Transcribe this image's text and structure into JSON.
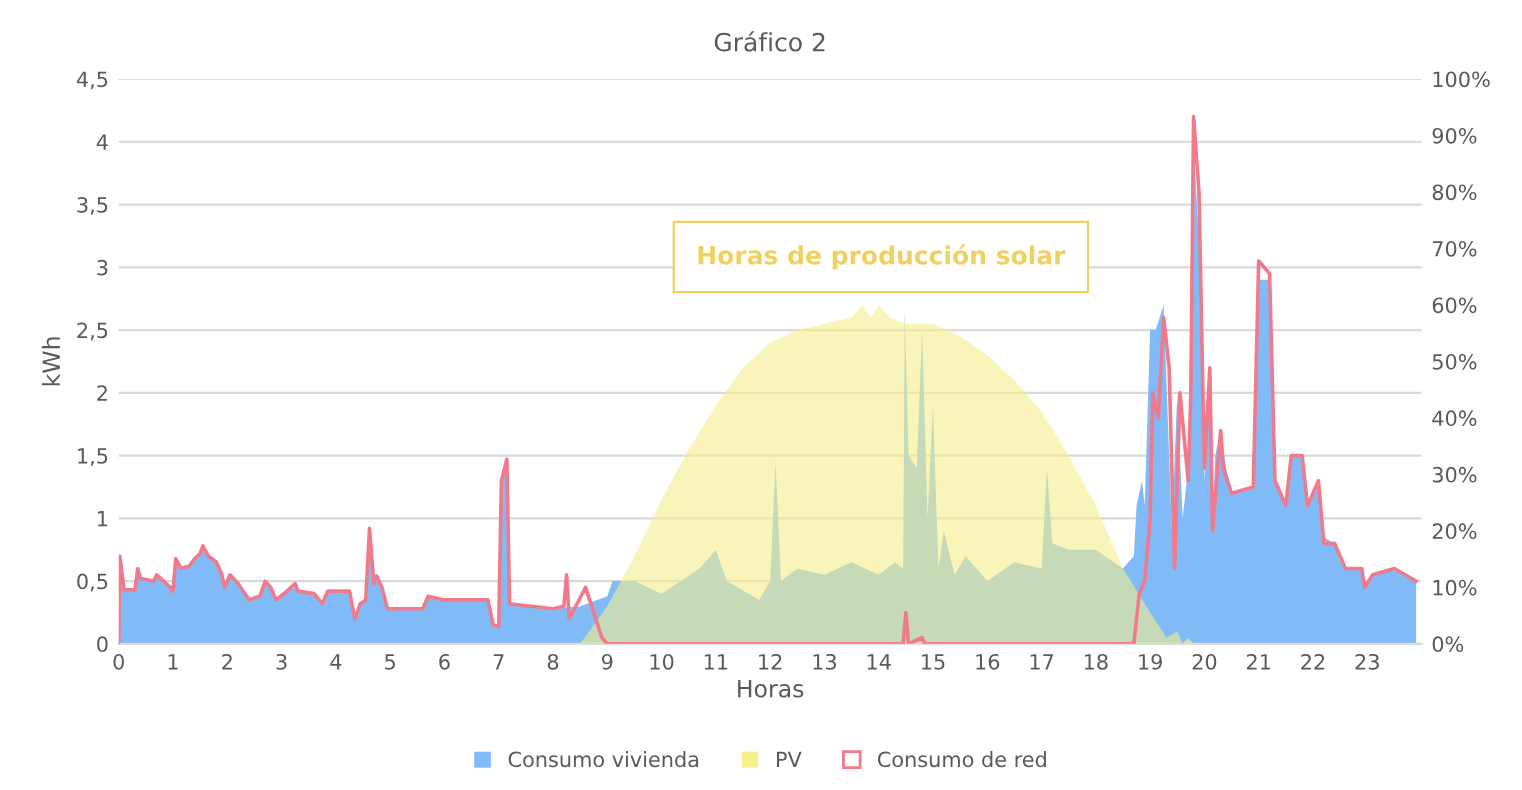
{
  "chart_data": {
    "type": "area",
    "title": "Gráfico 2",
    "xlabel": "Horas",
    "ylabel": "kWh",
    "xlim": [
      0,
      24
    ],
    "xticks": [
      0,
      1,
      2,
      3,
      4,
      5,
      6,
      7,
      8,
      9,
      10,
      11,
      12,
      13,
      14,
      15,
      16,
      17,
      18,
      19,
      20,
      21,
      22,
      23
    ],
    "ylim": [
      0,
      4.5
    ],
    "yticks": [
      0,
      {
        "value": 0.5,
        "label": "0,5"
      },
      1,
      {
        "value": 1.5,
        "label": "1,5"
      },
      2,
      {
        "value": 2.5,
        "label": "2,5"
      },
      3,
      {
        "value": 3.5,
        "label": "3,5"
      },
      4,
      {
        "value": 4.5,
        "label": "4,5"
      }
    ],
    "y2lim": [
      0,
      100
    ],
    "y2ticks": [
      {
        "value": 0,
        "label": "0%"
      },
      {
        "value": 10,
        "label": "10%"
      },
      {
        "value": 20,
        "label": "20%"
      },
      {
        "value": 30,
        "label": "30%"
      },
      {
        "value": 40,
        "label": "40%"
      },
      {
        "value": 50,
        "label": "50%"
      },
      {
        "value": 60,
        "label": "60%"
      },
      {
        "value": 70,
        "label": "70%"
      },
      {
        "value": 80,
        "label": "80%"
      },
      {
        "value": 90,
        "label": "90%"
      },
      {
        "value": 100,
        "label": "100%"
      }
    ],
    "grid": "y",
    "legend": "bottom",
    "annotations": [
      "Horas de producción solar"
    ],
    "series": [
      {
        "name": "Consumo vivienda",
        "color": "#80bbf7",
        "x": [
          0,
          0.02,
          0.1,
          0.3,
          0.35,
          0.4,
          0.65,
          0.7,
          0.95,
          1.0,
          1.05,
          1.15,
          1.3,
          1.4,
          1.5,
          1.55,
          1.65,
          1.8,
          1.9,
          1.95,
          2.05,
          2.2,
          2.4,
          2.6,
          2.7,
          2.8,
          2.9,
          3.1,
          3.25,
          3.3,
          3.6,
          3.75,
          3.85,
          4.25,
          4.35,
          4.45,
          4.55,
          4.62,
          4.7,
          4.75,
          4.85,
          4.95,
          5.6,
          5.7,
          6.0,
          6.8,
          6.9,
          7.0,
          7.05,
          7.15,
          7.2,
          7.6,
          8.0,
          8.5,
          9.0,
          9.1,
          9.5,
          10.0,
          10.7,
          11.0,
          11.2,
          11.8,
          12.0,
          12.1,
          12.2,
          12.5,
          13.0,
          13.5,
          14.0,
          14.3,
          14.45,
          14.48,
          14.55,
          14.7,
          14.8,
          14.9,
          15.0,
          15.1,
          15.2,
          15.4,
          15.6,
          16.0,
          16.5,
          17.0,
          17.1,
          17.2,
          17.5,
          18.0,
          18.5,
          18.7,
          18.75,
          18.85,
          18.9,
          19.0,
          19.1,
          19.25,
          19.35,
          19.4,
          19.5,
          19.6,
          19.7,
          19.8,
          19.9,
          20.0,
          20.1,
          20.15,
          20.2,
          20.3,
          20.4,
          20.5,
          20.9,
          21.0,
          21.2,
          21.3,
          21.5,
          21.6,
          21.8,
          21.9,
          22.1,
          22.2,
          22.4,
          22.6,
          22.9,
          22.95,
          23.1,
          23.5,
          23.7,
          23.9
        ],
        "values": [
          0,
          0.68,
          0.43,
          0.43,
          0.58,
          0.52,
          0.5,
          0.55,
          0.45,
          0.42,
          0.67,
          0.6,
          0.62,
          0.68,
          0.72,
          0.77,
          0.7,
          0.65,
          0.55,
          0.45,
          0.55,
          0.48,
          0.35,
          0.38,
          0.5,
          0.45,
          0.35,
          0.42,
          0.45,
          0.42,
          0.4,
          0.32,
          0.42,
          0.42,
          0.2,
          0.32,
          0.35,
          0.92,
          0.48,
          0.52,
          0.45,
          0.28,
          0.28,
          0.38,
          0.35,
          0.35,
          0.15,
          0.14,
          1.3,
          1.47,
          0.32,
          0.3,
          0.28,
          0.3,
          0.38,
          0.5,
          0.5,
          0.4,
          0.6,
          0.75,
          0.5,
          0.35,
          0.5,
          1.45,
          0.5,
          0.6,
          0.55,
          0.65,
          0.55,
          0.65,
          0.6,
          2.65,
          1.5,
          1.4,
          2.5,
          1.0,
          1.9,
          0.6,
          0.9,
          0.55,
          0.7,
          0.5,
          0.65,
          0.6,
          1.4,
          0.8,
          0.75,
          0.75,
          0.6,
          0.7,
          1.1,
          1.3,
          1.1,
          2.5,
          2.5,
          2.7,
          1.5,
          0.9,
          2.0,
          1.0,
          1.4,
          4.0,
          3.2,
          1.3,
          2.2,
          0.9,
          1.5,
          1.7,
          1.4,
          1.2,
          1.25,
          2.9,
          2.9,
          1.3,
          1.1,
          1.5,
          1.5,
          1.1,
          1.3,
          0.85,
          0.8,
          0.6,
          0.6,
          0.45,
          0.55,
          0.6,
          0.55,
          0.5
        ]
      },
      {
        "name": "PV",
        "color": "#f5ef8c",
        "x": [
          8.5,
          9,
          9.5,
          10,
          10.5,
          11,
          11.5,
          12,
          12.5,
          13,
          13.5,
          13.7,
          13.85,
          14,
          14.2,
          14.5,
          15,
          15.5,
          16,
          16.5,
          17,
          17.5,
          18,
          18.5,
          19,
          19.3,
          19.5,
          19.6,
          19.7,
          19.8
        ],
        "values": [
          0,
          0.3,
          0.7,
          1.15,
          1.55,
          1.9,
          2.2,
          2.4,
          2.5,
          2.55,
          2.6,
          2.7,
          2.6,
          2.7,
          2.6,
          2.55,
          2.55,
          2.45,
          2.3,
          2.1,
          1.85,
          1.5,
          1.1,
          0.6,
          0.25,
          0.05,
          0.1,
          0,
          0.05,
          0
        ]
      },
      {
        "name": "Consumo de red",
        "type": "line",
        "color": "#f07a8c",
        "x": [
          0,
          0.02,
          0.1,
          0.3,
          0.35,
          0.4,
          0.65,
          0.7,
          0.95,
          1.0,
          1.05,
          1.15,
          1.3,
          1.4,
          1.5,
          1.55,
          1.65,
          1.8,
          1.9,
          1.95,
          2.05,
          2.2,
          2.4,
          2.6,
          2.7,
          2.8,
          2.9,
          3.1,
          3.25,
          3.3,
          3.6,
          3.75,
          3.85,
          4.25,
          4.35,
          4.45,
          4.55,
          4.62,
          4.7,
          4.75,
          4.85,
          4.95,
          5.6,
          5.7,
          6.0,
          6.8,
          6.9,
          7.0,
          7.05,
          7.15,
          7.2,
          7.6,
          8.0,
          8.2,
          8.25,
          8.3,
          8.6,
          8.9,
          9.0,
          14.45,
          14.5,
          14.55,
          14.8,
          14.85,
          18.7,
          18.8,
          18.9,
          19.0,
          19.05,
          19.15,
          19.25,
          19.35,
          19.45,
          19.55,
          19.7,
          19.75,
          19.8,
          19.9,
          20.0,
          20.1,
          20.15,
          20.3,
          20.35,
          20.5,
          20.9,
          21.0,
          21.2,
          21.3,
          21.5,
          21.6,
          21.8,
          21.9,
          22.1,
          22.2,
          22.4,
          22.6,
          22.9,
          22.95,
          23.1,
          23.5,
          23.9
        ],
        "values": [
          0,
          0.7,
          0.43,
          0.43,
          0.6,
          0.52,
          0.5,
          0.55,
          0.45,
          0.42,
          0.68,
          0.6,
          0.62,
          0.68,
          0.72,
          0.78,
          0.7,
          0.65,
          0.55,
          0.45,
          0.55,
          0.48,
          0.35,
          0.38,
          0.5,
          0.45,
          0.35,
          0.42,
          0.48,
          0.42,
          0.4,
          0.32,
          0.42,
          0.42,
          0.2,
          0.32,
          0.35,
          0.92,
          0.48,
          0.54,
          0.45,
          0.28,
          0.28,
          0.38,
          0.35,
          0.35,
          0.15,
          0.14,
          1.3,
          1.47,
          0.32,
          0.3,
          0.28,
          0.3,
          0.55,
          0.2,
          0.45,
          0.05,
          0,
          0,
          0.25,
          0,
          0.05,
          0,
          0,
          0.4,
          0.5,
          1.0,
          2.0,
          1.8,
          2.6,
          2.2,
          0.6,
          2.0,
          1.3,
          2.0,
          4.2,
          3.6,
          1.4,
          2.2,
          0.9,
          1.7,
          1.4,
          1.2,
          1.25,
          3.05,
          2.95,
          1.3,
          1.1,
          1.5,
          1.5,
          1.1,
          1.3,
          0.8,
          0.8,
          0.6,
          0.6,
          0.45,
          0.55,
          0.6,
          0.5
        ]
      }
    ]
  }
}
